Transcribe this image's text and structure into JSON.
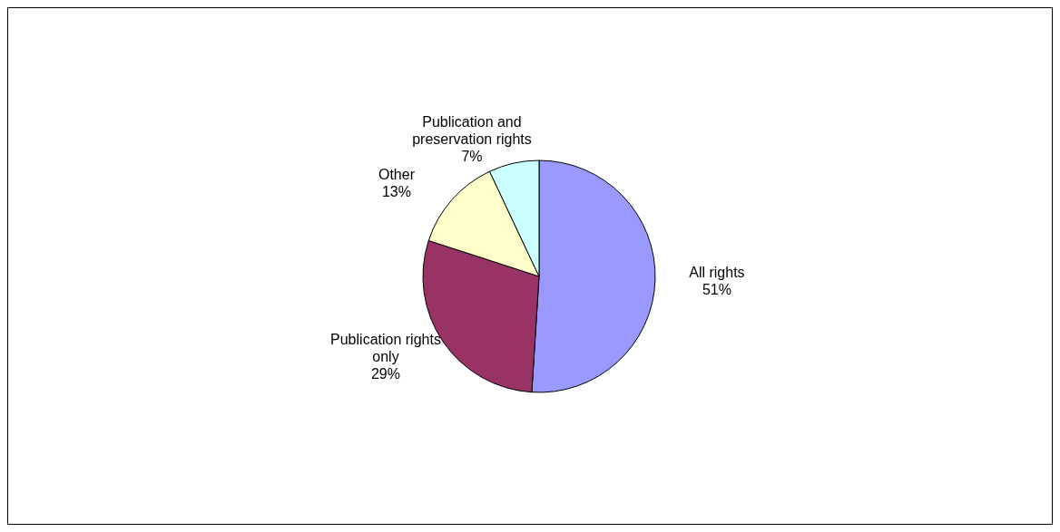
{
  "chart_data": {
    "type": "pie",
    "categories": [
      "All rights",
      "Publication rights only",
      "Other",
      "Publication and preservation rights"
    ],
    "values": [
      51,
      29,
      13,
      7
    ],
    "value_labels": [
      "51%",
      "29%",
      "13%",
      "7%"
    ],
    "colors": [
      "#9999ff",
      "#993366",
      "#ffffcc",
      "#ccffff"
    ],
    "legend": false
  }
}
